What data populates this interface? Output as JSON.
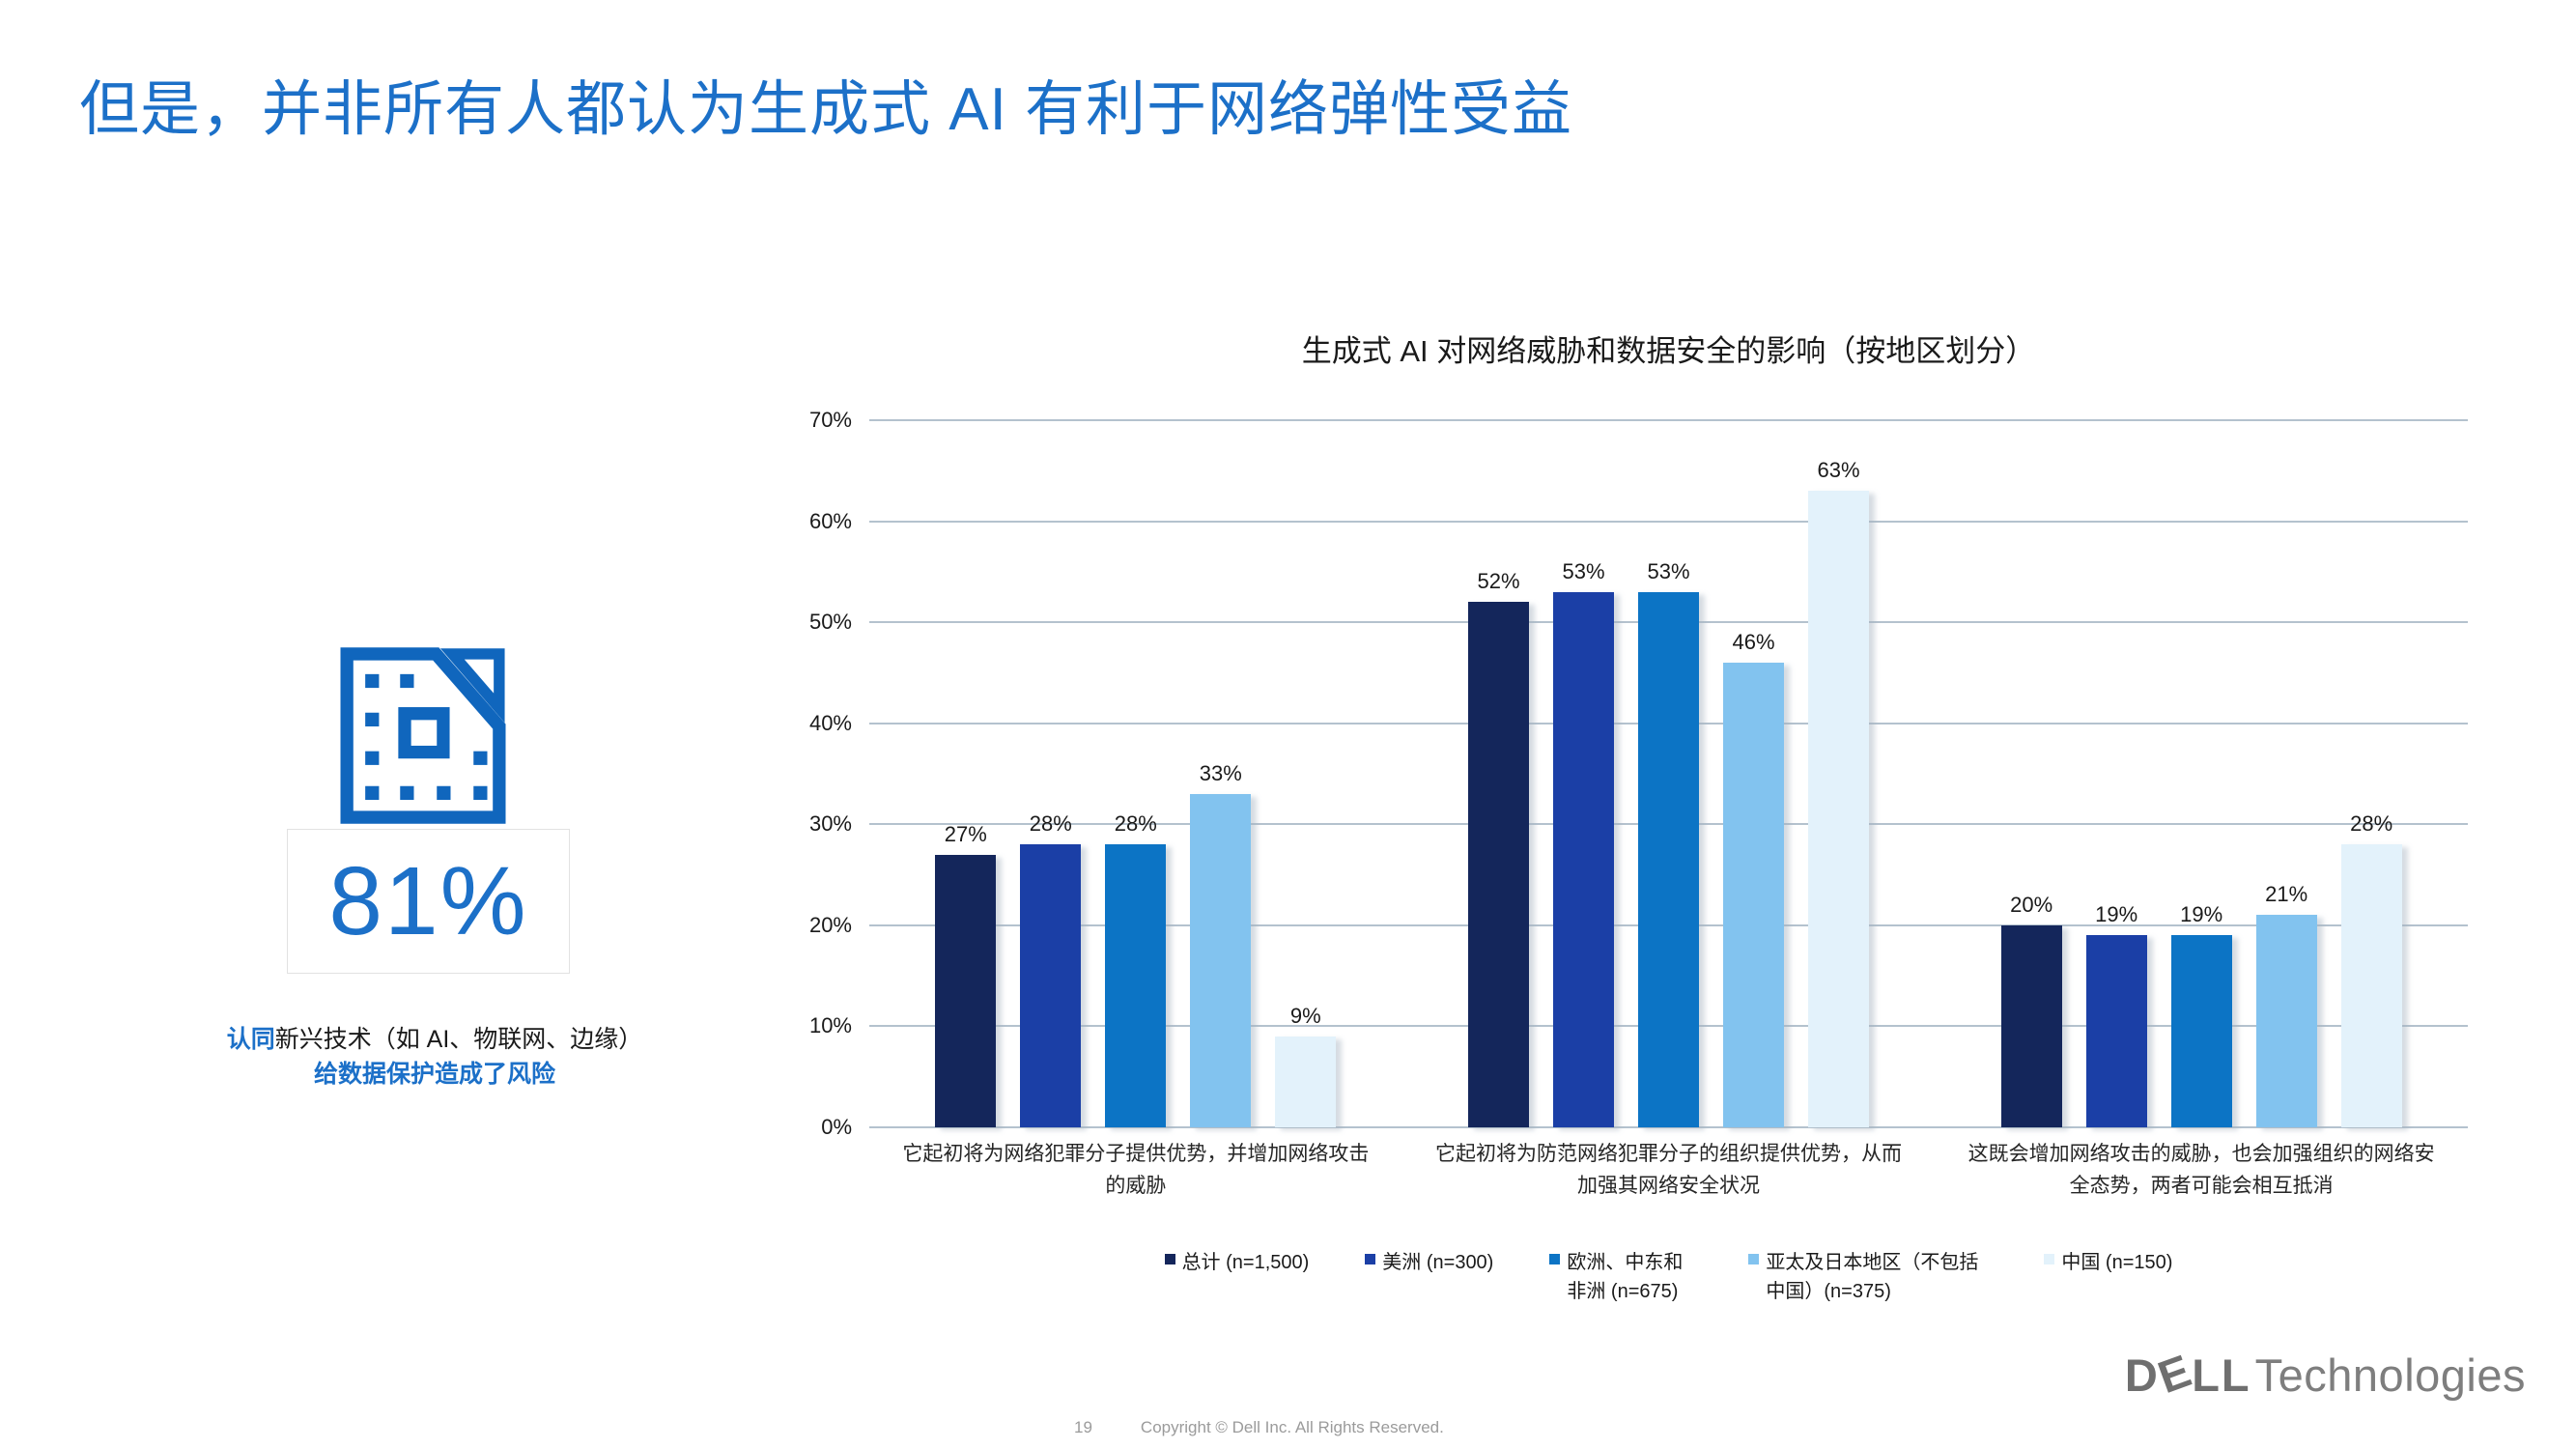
{
  "title": "但是，并非所有人都认为生成式 AI 有利于网络弹性受益",
  "stat": {
    "value": "81%",
    "desc_lead": "认同",
    "desc_mid": "新兴技术（如 AI、物联网、边缘）",
    "desc_tail": "给数据保护造成了风险",
    "icon": "chip-data-icon",
    "accent_color": "#1C70C8"
  },
  "chart_data": {
    "type": "bar",
    "title": "生成式 AI 对网络威胁和数据安全的影响（按地区划分）",
    "categories": [
      "它起初将为网络犯罪分子提供优势，并增加网络攻击的威胁",
      "它起初将为防范网络犯罪分子的组织提供优势，从而加强其网络安全状况",
      "这既会增加网络攻击的威胁，也会加强组织的网络安全态势，两者可能会相互抵消"
    ],
    "series": [
      {
        "name": "总计 (n=1,500)",
        "color": "#14265B",
        "values": [
          27,
          52,
          20
        ]
      },
      {
        "name": "美洲 (n=300)",
        "color": "#1B3FA6",
        "values": [
          28,
          53,
          19
        ]
      },
      {
        "name": "欧洲、中东和非洲 (n=675)",
        "color": "#0C74C5",
        "values": [
          28,
          53,
          19
        ]
      },
      {
        "name": "亚太及日本地区（不包括中国）(n=375)",
        "color": "#82C3EF",
        "values": [
          33,
          46,
          21
        ]
      },
      {
        "name": "中国 (n=150)",
        "color": "#E3F2FB",
        "values": [
          9,
          63,
          28
        ]
      }
    ],
    "value_suffix": "%",
    "ylim": [
      0,
      70
    ],
    "yticks": [
      "0%",
      "10%",
      "20%",
      "30%",
      "40%",
      "50%",
      "60%",
      "70%"
    ],
    "grid": true,
    "legend_position": "bottom"
  },
  "footer": {
    "page_number": "19",
    "copyright": "Copyright © Dell Inc. All Rights Reserved."
  },
  "brand": {
    "dell_d": "D",
    "dell_e": "E",
    "dell_ll": "LL",
    "suffix": "Technologies"
  }
}
